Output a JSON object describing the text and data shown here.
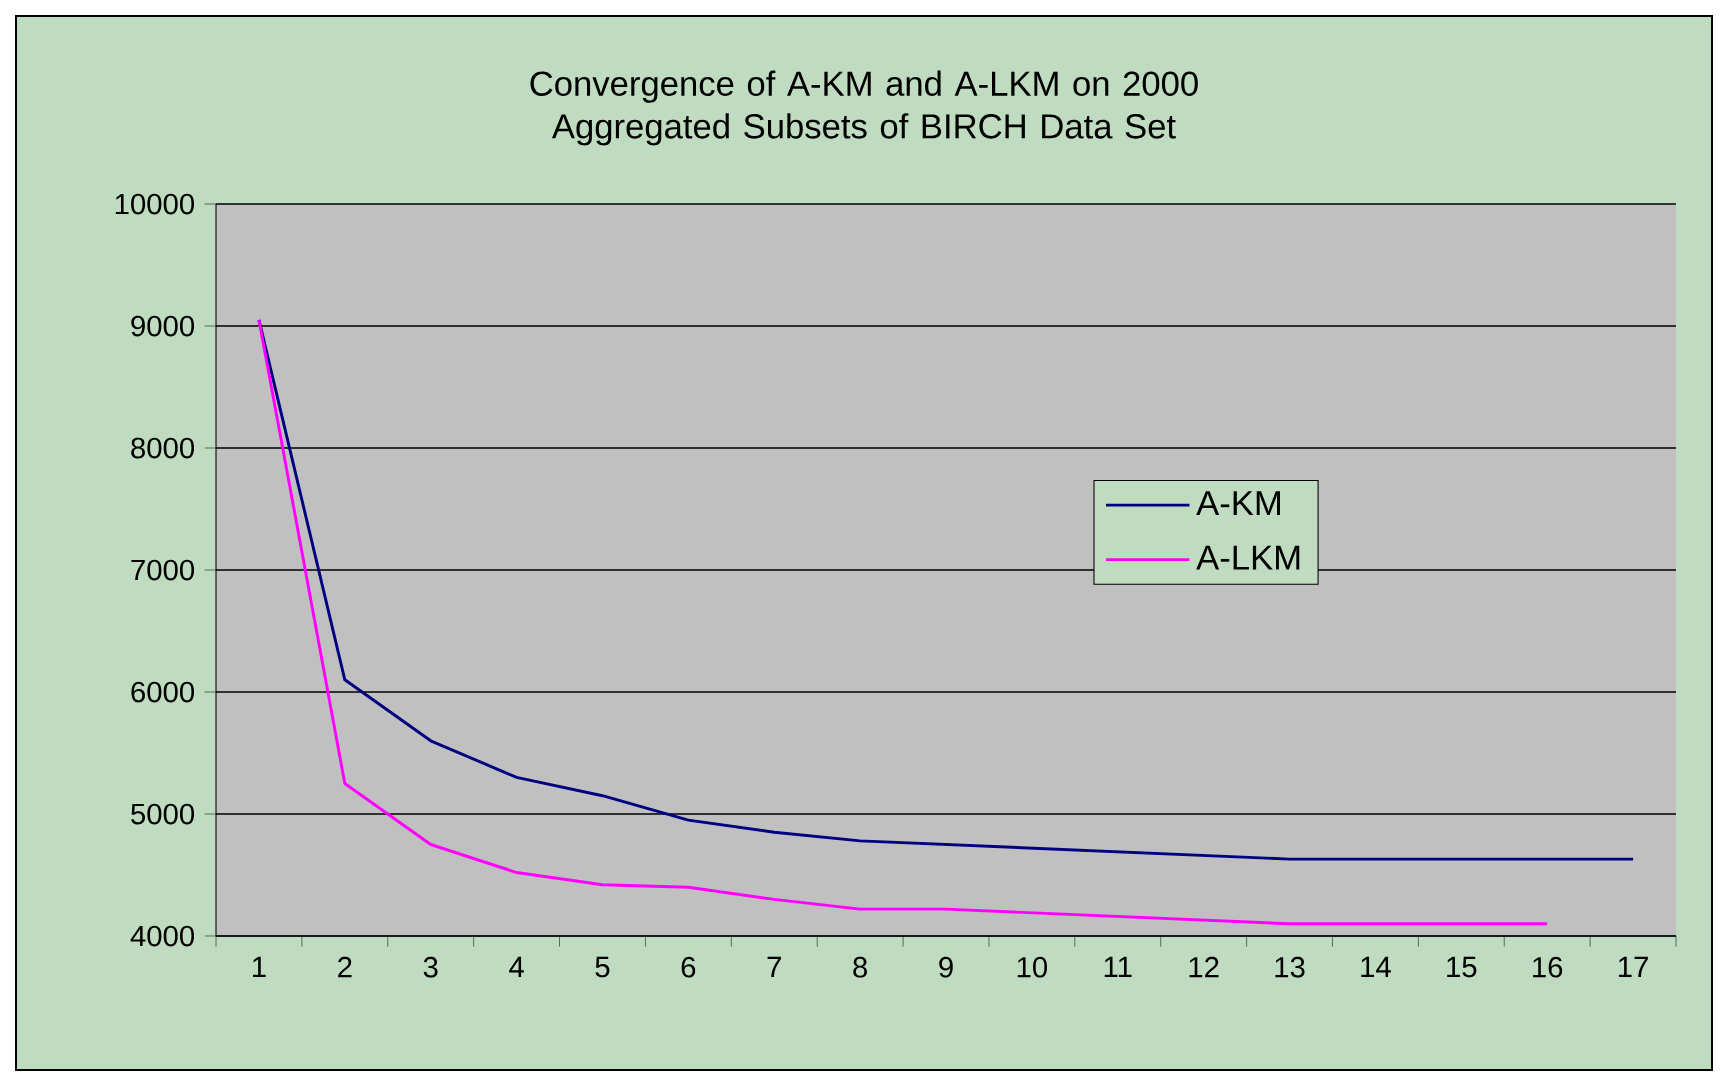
{
  "chart_data": {
    "type": "line",
    "title": "Convergence of A-KM and A-LKM on 2000 Aggregated Subsets of BIRCH Data Set",
    "categories": [
      "1",
      "2",
      "3",
      "4",
      "5",
      "6",
      "7",
      "8",
      "9",
      "10",
      "11",
      "12",
      "13",
      "14",
      "15",
      "16",
      "17"
    ],
    "series": [
      {
        "name": "A-KM",
        "color": "#000080",
        "values": [
          9050,
          6100,
          5600,
          5300,
          5150,
          4950,
          4850,
          4780,
          4750,
          4720,
          4690,
          4660,
          4630,
          4630,
          4630,
          4630,
          4630
        ]
      },
      {
        "name": "A-LKM",
        "color": "#ff00ff",
        "values": [
          9050,
          5250,
          4750,
          4520,
          4420,
          4400,
          4300,
          4220,
          4220,
          4190,
          4160,
          4130,
          4100,
          4100,
          4100,
          4100,
          null
        ]
      }
    ],
    "ylim": [
      4000,
      10000
    ],
    "yticks": [
      4000,
      5000,
      6000,
      7000,
      8000,
      9000,
      10000
    ],
    "grid": "y",
    "legend": "right",
    "marker": "none",
    "line_style": "solid"
  }
}
